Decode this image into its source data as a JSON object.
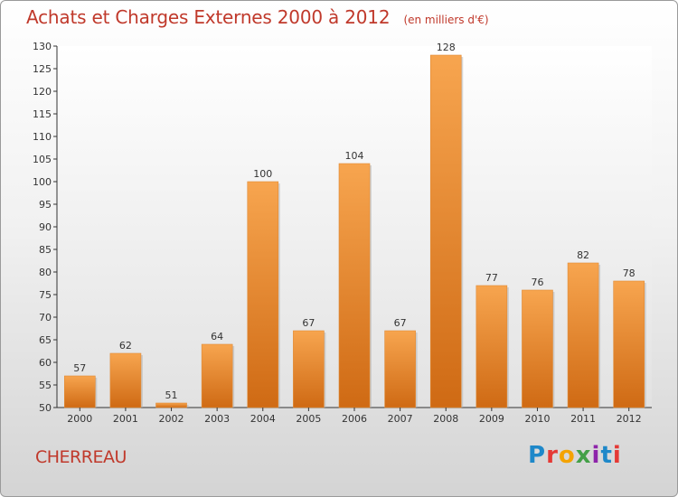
{
  "header": {
    "title": "Achats et Charges Externes 2000 à 2012",
    "subtitle": "(en milliers d'€)"
  },
  "footer": {
    "place_name": "CHERREAU",
    "logo_text": "Proxiti",
    "logo_colors": [
      "#1e88c9",
      "#e53935",
      "#f4a300",
      "#43a047",
      "#8e24aa",
      "#1e88c9",
      "#e53935"
    ]
  },
  "colors": {
    "bar_top": "#f7a54f",
    "bar_bottom": "#cf6a14",
    "accent_text": "#c0392b"
  },
  "chart_data": {
    "type": "bar",
    "categories": [
      "2000",
      "2001",
      "2002",
      "2003",
      "2004",
      "2005",
      "2006",
      "2007",
      "2008",
      "2009",
      "2010",
      "2011",
      "2012"
    ],
    "values": [
      57,
      62,
      51,
      64,
      100,
      67,
      104,
      67,
      128,
      77,
      76,
      82,
      78
    ],
    "title": "Achats et Charges Externes 2000 à 2012",
    "ylim": [
      50,
      130
    ],
    "yticks": [
      50,
      55,
      60,
      65,
      70,
      75,
      80,
      85,
      90,
      95,
      100,
      105,
      110,
      115,
      120,
      125,
      130
    ],
    "grid": false,
    "legend": "none"
  }
}
